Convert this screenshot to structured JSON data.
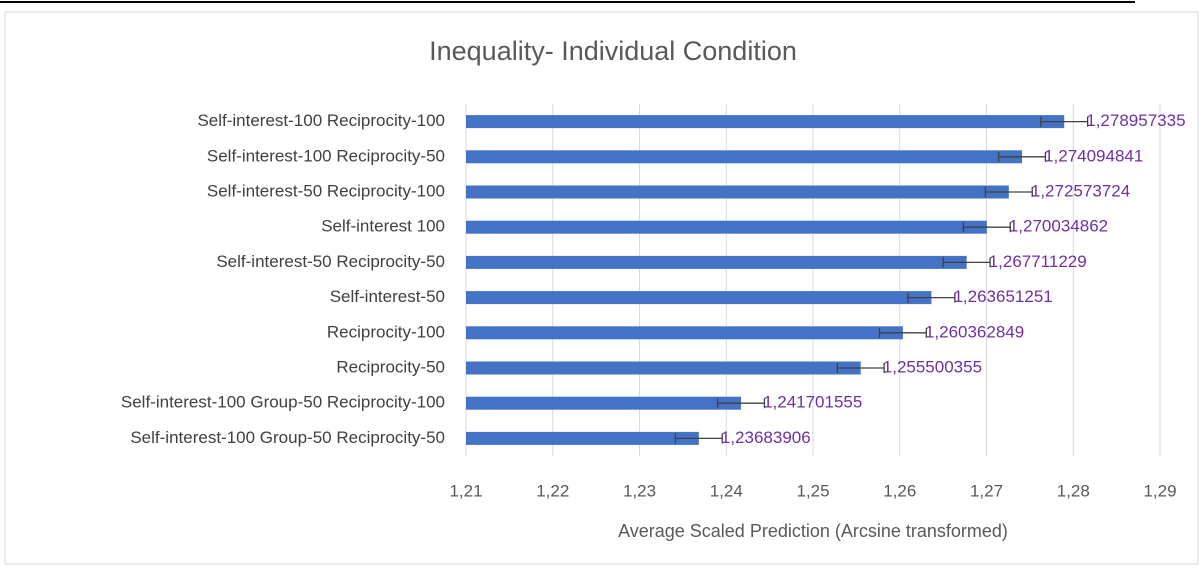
{
  "chart_data": {
    "type": "bar",
    "orientation": "horizontal",
    "title": "Inequality- Individual Condition",
    "x_label": "Average Scaled Prediction (Arcsine transformed)",
    "categories": [
      "Self-interest-100 Reciprocity-100",
      "Self-interest-100 Reciprocity-50",
      "Self-interest-50 Reciprocity-100",
      "Self-interest 100",
      "Self-interest-50 Reciprocity-50",
      "Self-interest-50",
      "Reciprocity-100",
      "Reciprocity-50",
      "Self-interest-100 Group-50 Reciprocity-100",
      "Self-interest-100 Group-50 Reciprocity-50"
    ],
    "values": [
      1.278957335,
      1.274094841,
      1.272573724,
      1.270034862,
      1.267711229,
      1.263651251,
      1.260362849,
      1.255500355,
      1.241701555,
      1.23683906
    ],
    "value_labels": [
      "1,278957335",
      "1,274094841",
      "1,272573724",
      "1,270034862",
      "1,267711229",
      "1,263651251",
      "1,260362849",
      "1,255500355",
      "1,241701555",
      "1,23683906"
    ],
    "errors": [
      0.0027,
      0.0027,
      0.0027,
      0.0027,
      0.0027,
      0.0027,
      0.0027,
      0.0027,
      0.0027,
      0.0027
    ],
    "color": "#4472c4",
    "label_color": "#7030a0",
    "xlim": [
      1.21,
      1.29
    ],
    "xticks": [
      {
        "value": 1.21,
        "label": "1,21"
      },
      {
        "value": 1.22,
        "label": "1,22"
      },
      {
        "value": 1.23,
        "label": "1,23"
      },
      {
        "value": 1.24,
        "label": "1,24"
      },
      {
        "value": 1.25,
        "label": "1,25"
      },
      {
        "value": 1.26,
        "label": "1,26"
      },
      {
        "value": 1.27,
        "label": "1,27"
      },
      {
        "value": 1.28,
        "label": "1,28"
      },
      {
        "value": 1.29,
        "label": "1,29"
      }
    ],
    "grid": true
  }
}
